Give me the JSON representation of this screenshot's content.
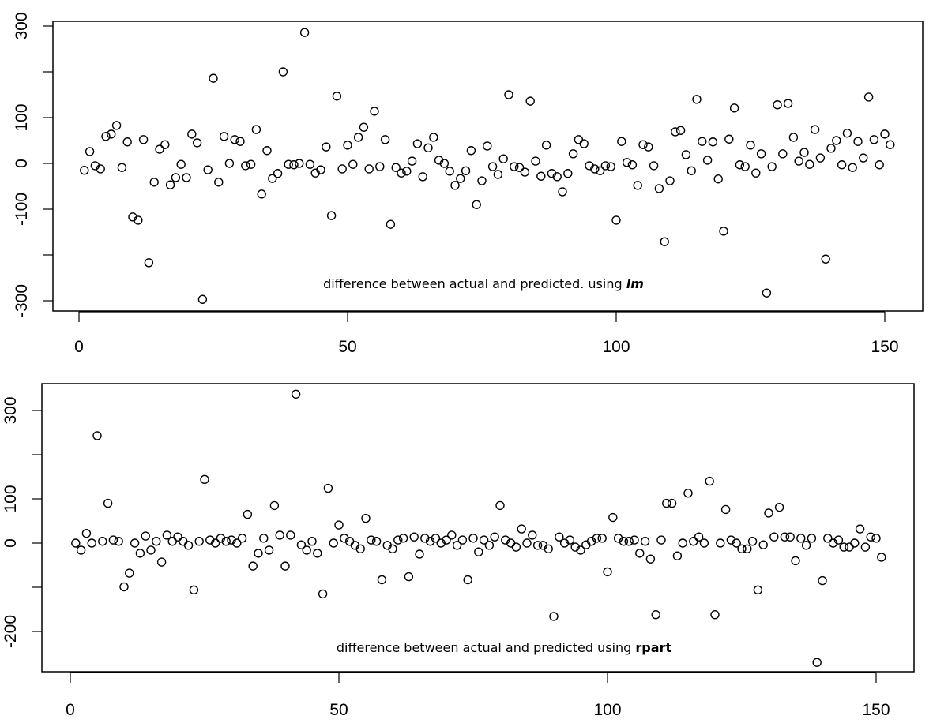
{
  "chart_data": [
    {
      "type": "scatter",
      "annotation": {
        "text": "difference between actual and predicted. using ",
        "emphasis": "lm"
      },
      "xlim": [
        0,
        150
      ],
      "ylim": [
        -300,
        300
      ],
      "x_ticks": [
        0,
        50,
        100,
        150
      ],
      "y_ticks": [
        300,
        200,
        100,
        0,
        -100,
        -200,
        -300
      ],
      "y_tick_labels": [
        "300",
        "",
        "100",
        "0",
        "-100",
        "",
        "-300"
      ],
      "x_tick_labels": [
        "0",
        "50",
        "100",
        "150"
      ],
      "marker": "open-circle",
      "grid": false,
      "values": [
        -15,
        26,
        -5,
        -12,
        59,
        64,
        83,
        -9,
        47,
        -117,
        -124,
        52,
        -217,
        -41,
        31,
        41,
        -47,
        -31,
        -2,
        -31,
        64,
        45,
        -297,
        -14,
        186,
        -41,
        59,
        0,
        52,
        48,
        -5,
        -2,
        74,
        -67,
        28,
        -33,
        -22,
        200,
        -2,
        -3,
        0,
        286,
        -2,
        -21,
        -14,
        36,
        -114,
        147,
        -12,
        40,
        -2,
        57,
        79,
        -12,
        114,
        -7,
        52,
        -133,
        -9,
        -21,
        -17,
        5,
        43,
        -29,
        34,
        57,
        7,
        0,
        -17,
        -48,
        -33,
        -16,
        28,
        -90,
        -38,
        38,
        -7,
        -24,
        10,
        150,
        -7,
        -9,
        -19,
        136,
        5,
        -28,
        40,
        -22,
        -29,
        -62,
        -22,
        21,
        52,
        43,
        -5,
        -12,
        -16,
        -5,
        -7,
        -124,
        48,
        2,
        -3,
        -48,
        41,
        36,
        -5,
        -55,
        -171,
        -38,
        69,
        72,
        19,
        -16,
        140,
        48,
        7,
        47,
        -34,
        -148,
        53,
        121,
        -3,
        -7,
        40,
        -21,
        21,
        -283,
        -7,
        128,
        21,
        131,
        57,
        5,
        24,
        -2,
        74,
        12,
        -209,
        33,
        50,
        -3,
        66,
        -9,
        48,
        12,
        145,
        52,
        -3,
        64,
        41
      ]
    },
    {
      "type": "scatter",
      "annotation": {
        "text": "difference between actual and predicted using ",
        "emphasis": "rpart"
      },
      "xlim": [
        0,
        150
      ],
      "ylim": [
        -270,
        337
      ],
      "x_ticks": [
        0,
        50,
        100,
        150
      ],
      "y_ticks": [
        300,
        200,
        100,
        0,
        -100,
        -200
      ],
      "y_tick_labels": [
        "300",
        "",
        "100",
        "0",
        "",
        "-200"
      ],
      "x_tick_labels": [
        "0",
        "50",
        "100",
        "150"
      ],
      "marker": "open-circle",
      "grid": false,
      "values": [
        0,
        -16,
        22,
        0,
        243,
        4,
        90,
        7,
        4,
        -99,
        -68,
        0,
        -23,
        16,
        -16,
        4,
        -43,
        18,
        4,
        14,
        4,
        -5,
        -106,
        4,
        144,
        7,
        0,
        11,
        4,
        7,
        0,
        11,
        65,
        -52,
        -23,
        11,
        -16,
        85,
        18,
        -52,
        18,
        337,
        -4,
        -16,
        4,
        -23,
        -115,
        124,
        0,
        41,
        11,
        4,
        -5,
        -13,
        56,
        7,
        4,
        -83,
        -5,
        -13,
        7,
        11,
        -76,
        14,
        -25,
        11,
        4,
        11,
        0,
        7,
        18,
        -5,
        7,
        -83,
        11,
        -20,
        7,
        -5,
        14,
        85,
        7,
        0,
        -9,
        32,
        0,
        18,
        -5,
        -5,
        -13,
        -166,
        14,
        0,
        7,
        -9,
        -16,
        -4,
        4,
        11,
        11,
        -65,
        58,
        11,
        4,
        4,
        7,
        -23,
        4,
        -36,
        -162,
        7,
        90,
        90,
        -29,
        0,
        113,
        4,
        14,
        0,
        140,
        -162,
        0,
        76,
        7,
        0,
        -13,
        -13,
        4,
        -106,
        -4,
        68,
        14,
        81,
        14,
        14,
        -40,
        11,
        -5,
        11,
        -270,
        -85,
        11,
        0,
        7,
        -9,
        -9,
        0,
        32,
        -9,
        14,
        11,
        -32
      ]
    }
  ]
}
